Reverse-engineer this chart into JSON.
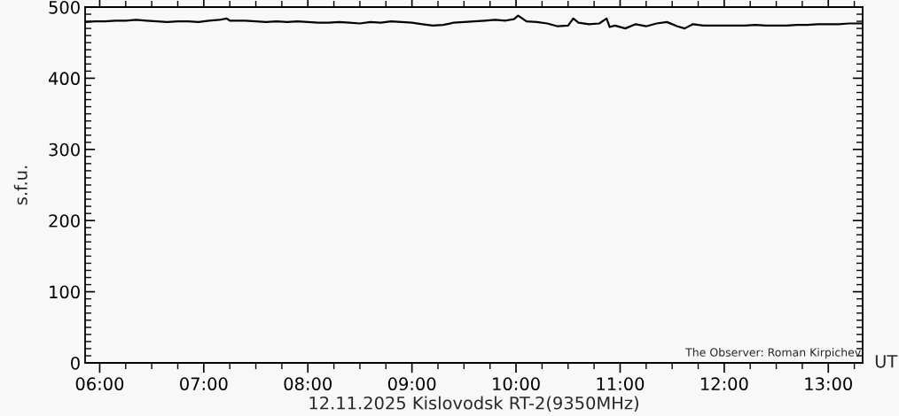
{
  "chart_data": {
    "type": "line",
    "xlabel": "12.11.2025 Kislovodsk RT-2(9350MHz)",
    "ylabel": "s.f.u.",
    "annotations": [
      "UT",
      "The Observer: Roman Kirpichev"
    ],
    "x": [
      5.87,
      5.95,
      6.05,
      6.15,
      6.25,
      6.35,
      6.45,
      6.55,
      6.65,
      6.75,
      6.85,
      6.95,
      7.05,
      7.15,
      7.22,
      7.25,
      7.3,
      7.4,
      7.5,
      7.6,
      7.7,
      7.8,
      7.9,
      8.0,
      8.1,
      8.2,
      8.3,
      8.4,
      8.5,
      8.6,
      8.7,
      8.8,
      8.9,
      9.0,
      9.1,
      9.2,
      9.3,
      9.4,
      9.5,
      9.6,
      9.7,
      9.8,
      9.9,
      9.98,
      10.02,
      10.1,
      10.2,
      10.3,
      10.4,
      10.5,
      10.55,
      10.6,
      10.7,
      10.8,
      10.87,
      10.9,
      10.95,
      11.05,
      11.15,
      11.25,
      11.35,
      11.45,
      11.55,
      11.62,
      11.7,
      11.8,
      11.9,
      12.0,
      12.1,
      12.2,
      12.3,
      12.4,
      12.5,
      12.6,
      12.7,
      12.8,
      12.9,
      13.0,
      13.1,
      13.2,
      13.32
    ],
    "values": [
      479,
      480,
      480,
      481,
      481,
      482,
      481,
      480,
      479,
      480,
      480,
      479,
      481,
      482,
      484,
      481,
      481,
      481,
      480,
      479,
      480,
      479,
      480,
      479,
      478,
      478,
      479,
      478,
      477,
      479,
      478,
      480,
      479,
      478,
      476,
      474,
      475,
      478,
      479,
      480,
      481,
      482,
      481,
      483,
      488,
      480,
      479,
      477,
      473,
      474,
      484,
      478,
      476,
      477,
      484,
      472,
      474,
      470,
      476,
      473,
      477,
      479,
      473,
      470,
      476,
      474,
      474,
      474,
      474,
      474,
      475,
      474,
      474,
      474,
      475,
      475,
      476,
      476,
      476,
      477,
      477
    ],
    "color": "#000000",
    "xlim": [
      5.86,
      13.33
    ],
    "xticks": [
      {
        "value": 6,
        "label": "06:00"
      },
      {
        "value": 7,
        "label": "07:00"
      },
      {
        "value": 8,
        "label": "08:00"
      },
      {
        "value": 9,
        "label": "09:00"
      },
      {
        "value": 10,
        "label": "10:00"
      },
      {
        "value": 11,
        "label": "11:00"
      },
      {
        "value": 12,
        "label": "12:00"
      },
      {
        "value": 13,
        "label": "13:00"
      }
    ],
    "ylim": [
      0,
      500
    ],
    "yticks": [
      0,
      100,
      200,
      300,
      400,
      500
    ],
    "grid": false,
    "legend": false,
    "marker": "none",
    "line_style": "solid"
  }
}
